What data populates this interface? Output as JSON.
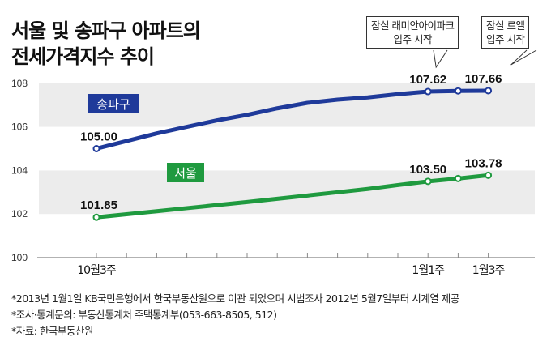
{
  "chart_data": {
    "type": "line",
    "title_lines": [
      "서울 및 송파구 아파트의",
      "전세가격지수 추이"
    ],
    "x_tick_labels": [
      {
        "index": 0,
        "label": "10월3주"
      },
      {
        "index": 11,
        "label": "1월1주"
      },
      {
        "index": 13,
        "label": "1월3주"
      }
    ],
    "num_points": 14,
    "y_ticks": [
      100,
      102,
      104,
      106,
      108
    ],
    "ylim": [
      100,
      108.6
    ],
    "grid_bands": [
      [
        102,
        104
      ],
      [
        106,
        108
      ]
    ],
    "series": [
      {
        "name": "송파구",
        "color": "#1f3a9a",
        "values": [
          105.0,
          105.35,
          105.7,
          106.0,
          106.3,
          106.55,
          106.85,
          107.1,
          107.25,
          107.35,
          107.5,
          107.62,
          107.65,
          107.66
        ],
        "markers": [
          0,
          11,
          12,
          13
        ],
        "data_labels": [
          {
            "index": 0,
            "text": "105.00"
          },
          {
            "index": 11,
            "text": "107.62"
          },
          {
            "index": 13,
            "text": "107.66"
          }
        ]
      },
      {
        "name": "서울",
        "color": "#1f9a3f",
        "values": [
          101.85,
          101.99,
          102.13,
          102.27,
          102.41,
          102.55,
          102.7,
          102.85,
          103.0,
          103.15,
          103.33,
          103.5,
          103.63,
          103.78
        ],
        "markers": [
          0,
          11,
          12,
          13
        ],
        "data_labels": [
          {
            "index": 0,
            "text": "101.85"
          },
          {
            "index": 11,
            "text": "103.50"
          },
          {
            "index": 13,
            "text": "103.78"
          }
        ]
      }
    ],
    "annotations": [
      {
        "index": 11,
        "lines": [
          "잠실 래미안아이파크",
          "입주 시작"
        ]
      },
      {
        "index": 13,
        "lines": [
          "잠실 르엘",
          "입주 시작"
        ]
      }
    ]
  },
  "footnotes": [
    "*2013년 1월1일 KB국민은행에서 한국부동산원으로 이관 되었으며 시범조사 2012년 5월7일부터 시계열 제공",
    "*조사·통계문의: 부동산통계처 주택통계부(053-663-8505, 512)",
    "*자료: 한국부동산원"
  ]
}
